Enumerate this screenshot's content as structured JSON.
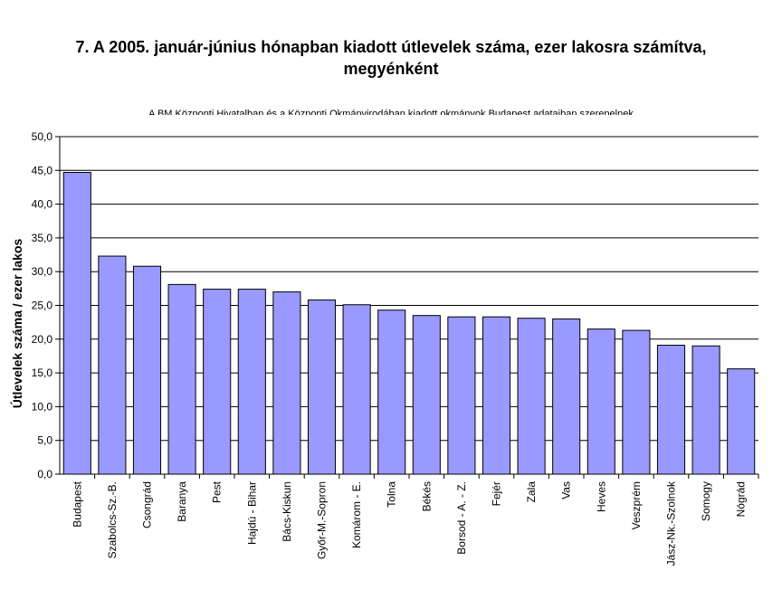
{
  "chart_data": {
    "type": "bar",
    "title_line1": "7. A 2005. január-június hónapban kiadott útlevelek száma, ezer lakosra számítva,",
    "title_line2": "megyénként",
    "subtitle": "A BM Központi Hivatalban és a Központi Okmányirodában kiadott okmányok Budapest adataiban szerepelnek",
    "ylabel": "Útlevelek száma / ezer lakos",
    "xlabel": "",
    "ylim": [
      0,
      50
    ],
    "yticks": [
      "0,0",
      "5,0",
      "10,0",
      "15,0",
      "20,0",
      "25,0",
      "30,0",
      "35,0",
      "40,0",
      "45,0",
      "50,0"
    ],
    "grid": true,
    "categories": [
      "Budapest",
      "Szabolcs-Sz.-B.",
      "Csongrád",
      "Baranya",
      "Pest",
      "Hajdú - Bihar",
      "Bács-Kiskun",
      "Győr-M.-Sopron",
      "Komárom - E.",
      "Tolna",
      "Békés",
      "Borsod - A. - Z.",
      "Fejér",
      "Zala",
      "Vas",
      "Heves",
      "Veszprém",
      "Jász-Nk.-Szolnok",
      "Somogy",
      "Nógrád"
    ],
    "values": [
      44.7,
      32.3,
      30.8,
      28.1,
      27.4,
      27.4,
      27.0,
      25.8,
      25.1,
      24.3,
      23.5,
      23.3,
      23.3,
      23.1,
      23.0,
      21.5,
      21.3,
      19.1,
      19.0,
      15.6
    ],
    "bar_color": "#9999ff"
  }
}
